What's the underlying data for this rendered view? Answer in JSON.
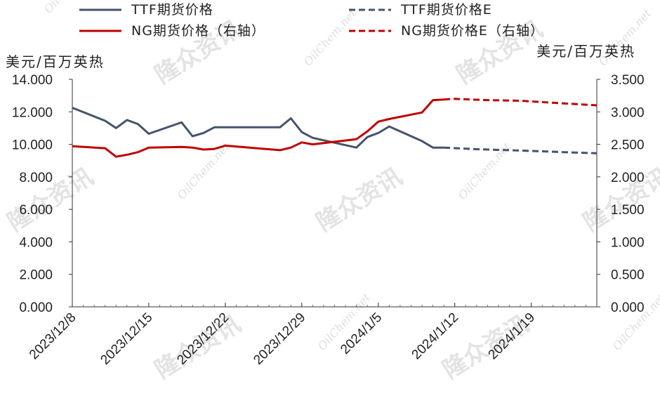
{
  "chart_data": {
    "type": "line",
    "y_left_label": "美元/百万英热",
    "y_right_label": "美元/百万英热",
    "y_left_lim": [
      0,
      14
    ],
    "y_right_lim": [
      0,
      3.5
    ],
    "y_left_ticks": [
      "0.000",
      "2.000",
      "4.000",
      "6.000",
      "8.000",
      "10.000",
      "12.000",
      "14.000"
    ],
    "y_right_ticks": [
      "0.000",
      "0.500",
      "1.000",
      "1.500",
      "2.000",
      "2.500",
      "3.000",
      "3.500"
    ],
    "x_ticks": [
      "2023/12/8",
      "2023/12/15",
      "2023/12/22",
      "2023/12/29",
      "2024/1/5",
      "2024/1/12",
      "2024/1/19"
    ],
    "x_range": [
      "2023-12-08",
      "2024-01-25"
    ],
    "legend_position": "top",
    "series": [
      {
        "name": "TTF期货价格",
        "axis": "left",
        "color": "#44546a",
        "dash": "solid",
        "points": [
          [
            "2023-12-08",
            12.25
          ],
          [
            "2023-12-11",
            11.45
          ],
          [
            "2023-12-12",
            11.0
          ],
          [
            "2023-12-13",
            11.5
          ],
          [
            "2023-12-14",
            11.25
          ],
          [
            "2023-12-15",
            10.65
          ],
          [
            "2023-12-18",
            11.35
          ],
          [
            "2023-12-19",
            10.5
          ],
          [
            "2023-12-20",
            10.7
          ],
          [
            "2023-12-21",
            11.05
          ],
          [
            "2023-12-27",
            11.05
          ],
          [
            "2023-12-28",
            11.6
          ],
          [
            "2023-12-29",
            10.75
          ],
          [
            "2023-12-30",
            10.4
          ],
          [
            "2024-01-03",
            9.8
          ],
          [
            "2024-01-04",
            10.45
          ],
          [
            "2024-01-05",
            10.7
          ],
          [
            "2024-01-06",
            11.1
          ],
          [
            "2024-01-09",
            10.2
          ],
          [
            "2024-01-10",
            9.8
          ],
          [
            "2024-01-11",
            9.8
          ]
        ]
      },
      {
        "name": "TTF期货价格E",
        "axis": "left",
        "color": "#44546a",
        "dash": "dashed",
        "points": [
          [
            "2024-01-11",
            9.8
          ],
          [
            "2024-01-14",
            9.7
          ],
          [
            "2024-01-18",
            9.62
          ],
          [
            "2024-01-22",
            9.52
          ],
          [
            "2024-01-25",
            9.45
          ]
        ]
      },
      {
        "name": "NG期货价格（右轴）",
        "axis": "right",
        "color": "#c00000",
        "dash": "solid",
        "points": [
          [
            "2023-12-08",
            2.47
          ],
          [
            "2023-12-11",
            2.44
          ],
          [
            "2023-12-12",
            2.31
          ],
          [
            "2023-12-13",
            2.34
          ],
          [
            "2023-12-14",
            2.38
          ],
          [
            "2023-12-15",
            2.45
          ],
          [
            "2023-12-18",
            2.46
          ],
          [
            "2023-12-19",
            2.45
          ],
          [
            "2023-12-20",
            2.42
          ],
          [
            "2023-12-21",
            2.43
          ],
          [
            "2023-12-22",
            2.48
          ],
          [
            "2023-12-27",
            2.41
          ],
          [
            "2023-12-28",
            2.45
          ],
          [
            "2023-12-29",
            2.53
          ],
          [
            "2023-12-30",
            2.5
          ],
          [
            "2024-01-03",
            2.58
          ],
          [
            "2024-01-04",
            2.7
          ],
          [
            "2024-01-05",
            2.85
          ],
          [
            "2024-01-06",
            2.89
          ],
          [
            "2024-01-09",
            2.99
          ],
          [
            "2024-01-10",
            3.18
          ],
          [
            "2024-01-11",
            3.19
          ]
        ]
      },
      {
        "name": "NG期货价格E（右轴）",
        "axis": "right",
        "color": "#c00000",
        "dash": "dashed",
        "points": [
          [
            "2024-01-11",
            3.19
          ],
          [
            "2024-01-12",
            3.2
          ],
          [
            "2024-01-15",
            3.18
          ],
          [
            "2024-01-18",
            3.17
          ],
          [
            "2024-01-22",
            3.13
          ],
          [
            "2024-01-25",
            3.1
          ]
        ]
      }
    ]
  },
  "watermarks": {
    "brand": "隆众资讯",
    "site": "OilChem.net"
  }
}
